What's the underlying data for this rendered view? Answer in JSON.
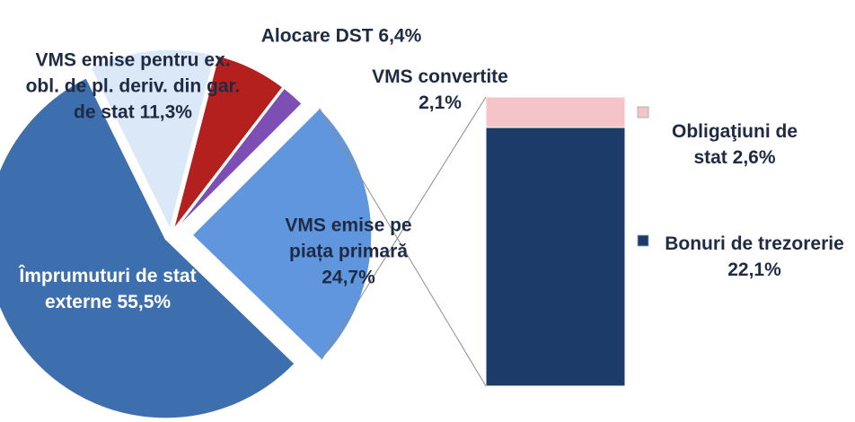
{
  "chart_data": {
    "type": "pie-of-bar",
    "categories": [
      "Împrumuturi de stat externe",
      "VMS emise pentru ex. obl. de pl. deriv. din gar. de stat",
      "Alocare DST",
      "VMS convertite",
      "VMS emise pe piața primară"
    ],
    "values": [
      55.5,
      11.3,
      6.4,
      2.1,
      24.7
    ],
    "value_labels": [
      "55,5%",
      "11,3%",
      "6,4%",
      "2,1%",
      "24,7%"
    ],
    "colors": [
      "#3d6fae",
      "#dbe8f8",
      "#b3201d",
      "#7d4fb4",
      "#5f96de"
    ],
    "bar": {
      "categories": [
        "Obligaţiuni de stat",
        "Bonuri de trezorerie"
      ],
      "values": [
        2.6,
        22.1
      ],
      "value_labels": [
        "2,6%",
        "22,1%"
      ],
      "colors": [
        "#f4c4c9",
        "#1d3b68"
      ]
    }
  }
}
